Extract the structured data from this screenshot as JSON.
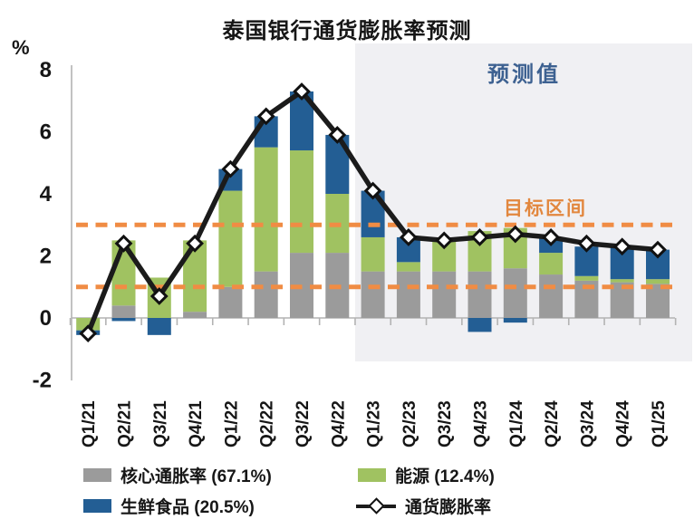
{
  "title": "泰国银行通货膨胀率预测",
  "y_axis_unit": "%",
  "annotations": {
    "forecast_label": "预测值",
    "target_label": "目标区间"
  },
  "legend": [
    {
      "label": "核心通胀率 (67.1%)",
      "color": "#9b9b9b",
      "type": "bar"
    },
    {
      "label": "能源 (12.4%)",
      "color": "#a0c261",
      "type": "bar"
    },
    {
      "label": "生鲜食品 (20.5%)",
      "color": "#235e94",
      "type": "bar"
    },
    {
      "label": "通货膨胀率",
      "color": "#1b1b1b",
      "type": "line"
    }
  ],
  "chart_data": {
    "type": "bar",
    "subtype": "stacked bars with line overlay",
    "categories": [
      "Q1/21",
      "Q2/21",
      "Q3/21",
      "Q4/21",
      "Q1/22",
      "Q2/22",
      "Q3/22",
      "Q4/22",
      "Q1/23",
      "Q2/23",
      "Q3/23",
      "Q4/23",
      "Q1/24",
      "Q2/24",
      "Q3/24",
      "Q4/24",
      "Q1/25"
    ],
    "series": [
      {
        "name": "核心通胀率 (67.1%)",
        "role": "bar",
        "color": "#9b9b9b",
        "values": [
          0.0,
          0.4,
          0.0,
          0.2,
          1.0,
          1.5,
          2.1,
          2.1,
          1.5,
          1.5,
          1.5,
          1.5,
          1.6,
          1.4,
          1.2,
          1.15,
          1.1
        ]
      },
      {
        "name": "能源 (12.4%)",
        "role": "bar",
        "color": "#a0c261",
        "values": [
          -0.4,
          2.1,
          1.3,
          2.3,
          3.1,
          4.0,
          3.3,
          1.9,
          1.1,
          0.3,
          1.0,
          1.3,
          1.3,
          0.7,
          0.15,
          0.1,
          0.15
        ]
      },
      {
        "name": "生鲜食品 (20.5%)",
        "role": "bar",
        "color": "#235e94",
        "values": [
          -0.15,
          -0.1,
          -0.55,
          0.0,
          0.7,
          1.0,
          1.9,
          1.9,
          1.5,
          0.8,
          0.0,
          -0.45,
          -0.15,
          0.5,
          0.95,
          1.05,
          0.95
        ]
      },
      {
        "name": "通货膨胀率",
        "role": "line",
        "color": "#1b1b1b",
        "marker": "diamond",
        "values": [
          -0.5,
          2.4,
          0.7,
          2.4,
          4.8,
          6.5,
          7.3,
          5.9,
          4.1,
          2.6,
          2.5,
          2.6,
          2.7,
          2.6,
          2.4,
          2.3,
          2.2
        ]
      }
    ],
    "title": "泰国银行通货膨胀率预测",
    "xlabel": "",
    "ylabel": "%",
    "ylim": [
      -2,
      8
    ],
    "yticks": [
      8,
      6,
      4,
      2,
      0,
      -2
    ],
    "grid": false,
    "legend_position": "bottom",
    "target_band": [
      1,
      3
    ],
    "forecast_start_category": "Q1/23"
  },
  "colors": {
    "core_bar": "#9b9b9b",
    "energy_bar": "#a0c261",
    "fresh_food_bar": "#235e94",
    "inflation_line": "#1b1b1b",
    "marker_fill": "#ffffff",
    "target_dash": "#f08c44",
    "forecast_bg": "#f0f0f3",
    "forecast_label_text": "#3d6191",
    "target_label_text": "#e2873e",
    "axis": "#b3b3b3",
    "text": "#161616"
  }
}
